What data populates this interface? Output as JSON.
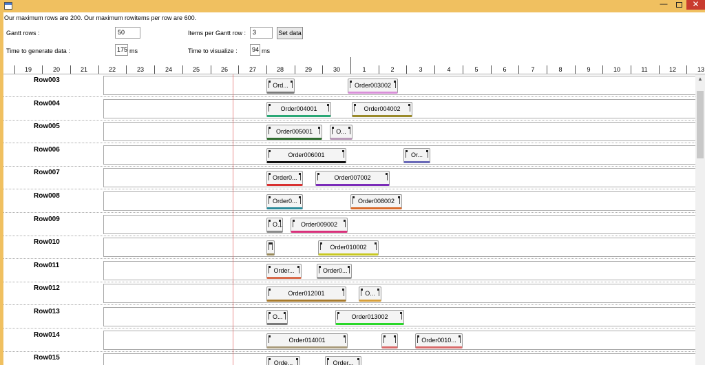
{
  "window": {
    "min_glyph": "—",
    "close_glyph": "✕"
  },
  "header": {
    "info": "Our maximum rows are 200. Our maximum rowitems per row are 600.",
    "gantt_rows_label": "Gantt rows :",
    "gantt_rows_value": "50",
    "items_per_row_label": "Items per Gantt row :",
    "items_per_row_value": "3",
    "set_data_label": "Set data",
    "time_generate_label": "Time to generate data :",
    "time_generate_value": "175",
    "time_generate_unit": "ms",
    "time_visualize_label": "Time to visualize :",
    "time_visualize_value": "94",
    "time_visualize_unit": "ms"
  },
  "timeline": {
    "ticks": [
      "19",
      "20",
      "21",
      "22",
      "23",
      "24",
      "25",
      "26",
      "27",
      "28",
      "29",
      "30",
      "1",
      "2",
      "3",
      "4",
      "5",
      "6",
      "7",
      "8",
      "9",
      "10",
      "11",
      "12",
      "13"
    ]
  },
  "rows": [
    {
      "name": "Row003",
      "items": [
        {
          "label": "Ord...",
          "color": "#7a7a7a",
          "start": 28,
          "end": 29
        },
        {
          "label": "Order003002",
          "color": "#d98fd9",
          "start": 30.9,
          "end": 32.7
        }
      ]
    },
    {
      "name": "Row004",
      "items": [
        {
          "label": "Order004001",
          "color": "#2aa876",
          "start": 28,
          "end": 30.3
        },
        {
          "label": "Order004002",
          "color": "#9a8a2a",
          "start": 31.05,
          "end": 33.2
        }
      ]
    },
    {
      "name": "Row005",
      "items": [
        {
          "label": "Order005001",
          "color": "#2e6b2e",
          "start": 28,
          "end": 30
        },
        {
          "label": "O...",
          "color": "#b89ab8",
          "start": 30.25,
          "end": 31.05
        }
      ]
    },
    {
      "name": "Row006",
      "items": [
        {
          "label": "Order006001",
          "color": "#111111",
          "start": 28,
          "end": 30.85
        },
        {
          "label": "Or...",
          "color": "#6a6ab8",
          "start": 32.9,
          "end": 33.85
        }
      ]
    },
    {
      "name": "Row007",
      "items": [
        {
          "label": "Order0...",
          "color": "#d83030",
          "start": 28,
          "end": 29.3
        },
        {
          "label": "Order007002",
          "color": "#7a2ab8",
          "start": 29.75,
          "end": 32.4
        }
      ]
    },
    {
      "name": "Row008",
      "items": [
        {
          "label": "Order0...",
          "color": "#2a8a9a",
          "start": 28,
          "end": 29.3
        },
        {
          "label": "Order008002",
          "color": "#d86a2a",
          "start": 31,
          "end": 32.85
        }
      ]
    },
    {
      "name": "Row009",
      "items": [
        {
          "label": "O...",
          "color": "#8a8a8a",
          "start": 28,
          "end": 28.6
        },
        {
          "label": "Order009002",
          "color": "#d8307a",
          "start": 28.85,
          "end": 30.9
        }
      ]
    },
    {
      "name": "Row010",
      "items": [
        {
          "label": "",
          "color": "#9a8a5a",
          "start": 28,
          "end": 28.3
        },
        {
          "label": "Order010002",
          "color": "#c8c820",
          "start": 29.85,
          "end": 32
        }
      ]
    },
    {
      "name": "Row011",
      "items": [
        {
          "label": "Order...",
          "color": "#d86a4a",
          "start": 28,
          "end": 29.25
        },
        {
          "label": "Order0...",
          "color": "#9a9a9a",
          "start": 29.8,
          "end": 31.05
        }
      ]
    },
    {
      "name": "Row012",
      "items": [
        {
          "label": "Order012001",
          "color": "#a87a2a",
          "start": 28,
          "end": 30.85
        },
        {
          "label": "O...",
          "color": "#d8a03a",
          "start": 31.3,
          "end": 32.1
        }
      ]
    },
    {
      "name": "Row013",
      "items": [
        {
          "label": "O...",
          "color": "#7a7a7a",
          "start": 28,
          "end": 28.75
        },
        {
          "label": "Order013002",
          "color": "#2ad82a",
          "start": 30.45,
          "end": 32.9
        }
      ]
    },
    {
      "name": "Row014",
      "items": [
        {
          "label": "Order014001",
          "color": "#a89a7a",
          "start": 28,
          "end": 30.9
        },
        {
          "label": "",
          "color": "#d86a6a",
          "start": 32.1,
          "end": 32.7
        },
        {
          "label": "Order0010...",
          "color": "#d86a6a",
          "start": 33.3,
          "end": 35
        }
      ]
    },
    {
      "name": "Row015",
      "items": [
        {
          "label": "Orde...",
          "color": "#8a2a9a",
          "start": 28,
          "end": 29.2
        },
        {
          "label": "Order...",
          "color": "#5a7a9a",
          "start": 30.1,
          "end": 31.4
        }
      ]
    }
  ]
}
